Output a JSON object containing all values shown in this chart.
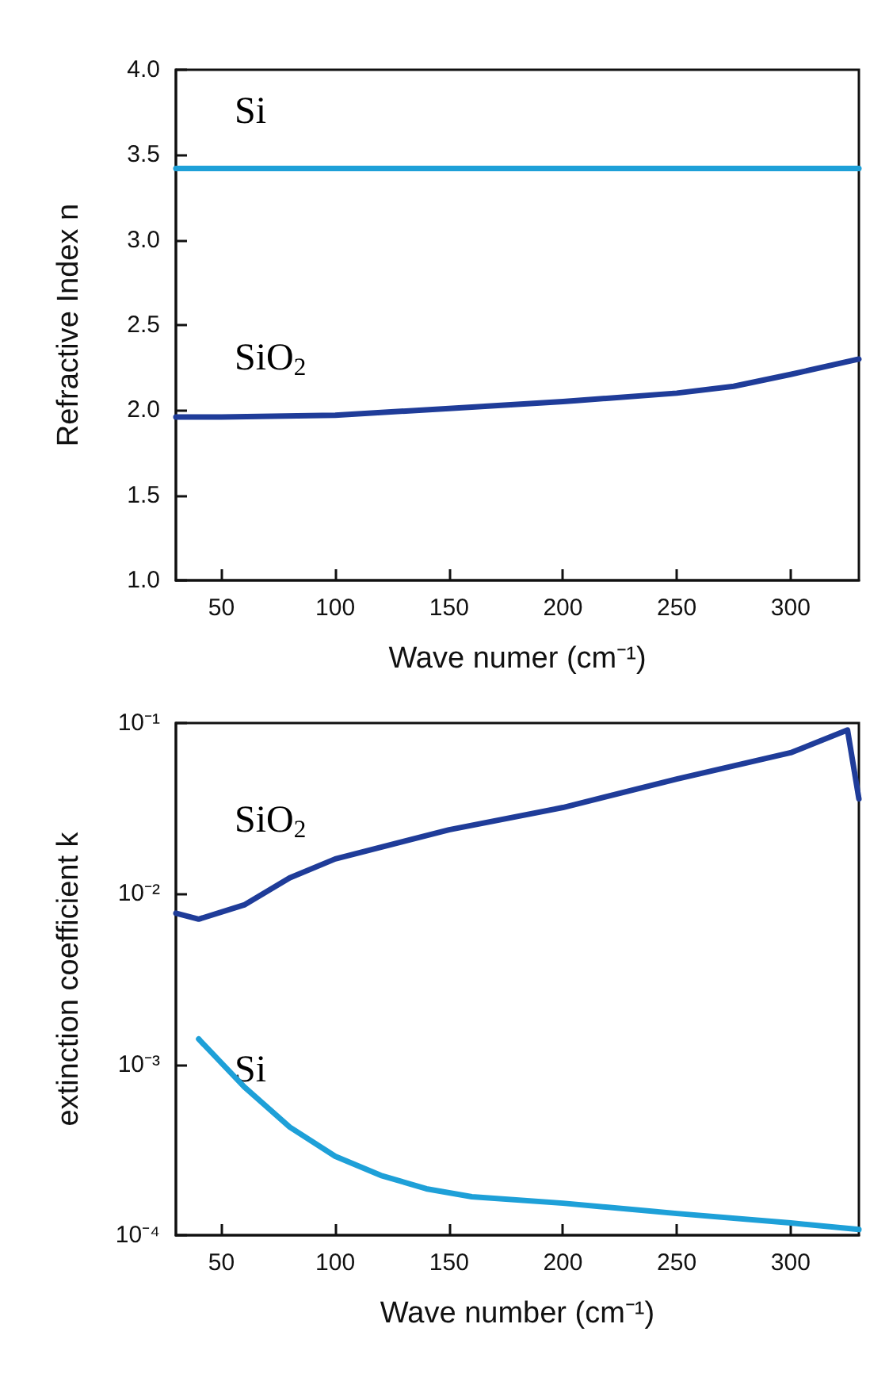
{
  "chart_data": [
    {
      "type": "line",
      "xlabel": "Wave numer (cm⁻¹)",
      "ylabel": "Refractive Index n",
      "xlim": [
        30,
        330
      ],
      "xticks": [
        50,
        100,
        150,
        200,
        250,
        300
      ],
      "ylim": [
        1.0,
        4.0
      ],
      "yticks": [
        {
          "value": 1.0,
          "label": "1.0"
        },
        {
          "value": 1.5,
          "label": "1.5"
        },
        {
          "value": 2.0,
          "label": "2.0"
        },
        {
          "value": 2.5,
          "label": "2.5"
        },
        {
          "value": 3.0,
          "label": "3.0"
        },
        {
          "value": 3.5,
          "label": "3.5"
        },
        {
          "value": 4.0,
          "label": "4.0"
        }
      ],
      "grid": false,
      "legend": false,
      "series": [
        {
          "name": "Si",
          "color": "#1ea0d8",
          "x": [
            30,
            330
          ],
          "values": [
            3.42,
            3.42
          ]
        },
        {
          "name": "SiO$_{2}$",
          "color": "#1f3c99",
          "x": [
            30,
            50,
            100,
            150,
            200,
            250,
            275,
            300,
            330
          ],
          "values": [
            1.96,
            1.96,
            1.97,
            2.01,
            2.05,
            2.1,
            2.14,
            2.21,
            2.3
          ]
        }
      ]
    },
    {
      "type": "line",
      "xlabel": "Wave number (cm⁻¹)",
      "ylabel": "extinction coefficient k",
      "log": "y",
      "xlim": [
        30,
        330
      ],
      "xticks": [
        50,
        100,
        150,
        200,
        250,
        300
      ],
      "ylim": [
        0.0001,
        0.1
      ],
      "yticks": [
        {
          "value": 0.0001,
          "label": "10⁻⁴"
        },
        {
          "value": 0.001,
          "label": "10⁻³"
        },
        {
          "value": 0.01,
          "label": "10⁻²"
        },
        {
          "value": 0.1,
          "label": "10⁻¹"
        }
      ],
      "grid": false,
      "legend": false,
      "series": [
        {
          "name": "SiO$_{2}$",
          "color": "#1f3c99",
          "x": [
            30,
            40,
            60,
            80,
            100,
            150,
            200,
            250,
            300,
            325,
            330
          ],
          "values": [
            0.0077,
            0.0071,
            0.0086,
            0.0124,
            0.016,
            0.0237,
            0.032,
            0.047,
            0.067,
            0.091,
            0.036
          ]
        },
        {
          "name": "Si",
          "color": "#1ea0d8",
          "x": [
            40,
            60,
            80,
            100,
            120,
            140,
            160,
            200,
            250,
            300,
            330
          ],
          "values": [
            0.00141,
            0.00074,
            0.00043,
            0.00029,
            0.000224,
            0.000187,
            0.000168,
            0.000154,
            0.000134,
            0.000118,
            0.000108
          ]
        }
      ]
    }
  ]
}
